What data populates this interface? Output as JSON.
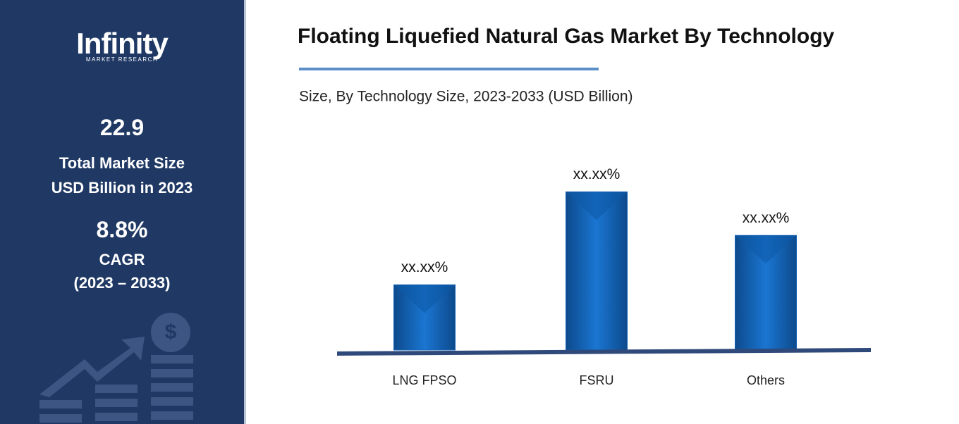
{
  "sidebar": {
    "logo": "Infinity",
    "logo_sub": "MARKET RESEARCH",
    "stats": [
      {
        "value": "22.9",
        "lines": [
          "Total Market Size",
          "USD Billion in 2023"
        ]
      },
      {
        "value": "8.8%",
        "lines": [
          "CAGR",
          "(2023 – 2033)"
        ]
      }
    ]
  },
  "chart_data": {
    "type": "bar",
    "title": "Floating Liquefied Natural Gas Market By Technology",
    "subtitle": "Size, By Technology Size, 2023-2033 (USD Billion)",
    "categories": [
      "LNG FPSO",
      "FSRU",
      "Others"
    ],
    "values": [
      19.3,
      46.8,
      33.9
    ],
    "value_labels": [
      "xx.xx%",
      "xx.xx%",
      "xx.xx%"
    ],
    "color": "#1565b8",
    "ylim": [
      0,
      50
    ]
  }
}
